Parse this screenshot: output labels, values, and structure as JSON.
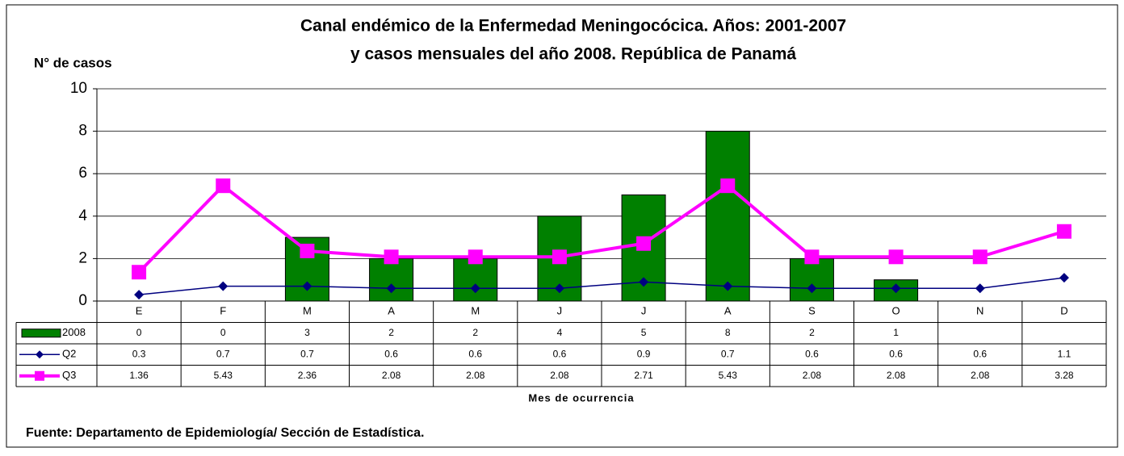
{
  "chart_data": {
    "type": "combo",
    "title": [
      "Canal endémico de la Enfermedad Meningocócica. Años: 2001-2007",
      "y casos mensuales del año 2008. República de Panamá"
    ],
    "ylabel": "N° de casos",
    "xlabel": "Mes de ocurrencia",
    "source": "Fuente: Departamento de Epidemiología/ Sección de Estadística.",
    "categories": [
      "E",
      "F",
      "M",
      "A",
      "M",
      "J",
      "J",
      "A",
      "S",
      "O",
      "N",
      "D"
    ],
    "series": [
      {
        "name": "2008",
        "type": "bar",
        "color": "#008000",
        "values": [
          0,
          0,
          3,
          2,
          2,
          4,
          5,
          8,
          2,
          1,
          null,
          null
        ]
      },
      {
        "name": "Q2",
        "type": "line",
        "marker": "diamond",
        "color": "#000080",
        "values": [
          0.3,
          0.7,
          0.7,
          0.6,
          0.6,
          0.6,
          0.9,
          0.7,
          0.6,
          0.6,
          0.6,
          1.1
        ]
      },
      {
        "name": "Q3",
        "type": "line",
        "marker": "square",
        "color": "#ff00ff",
        "values": [
          1.36,
          5.43,
          2.36,
          2.08,
          2.08,
          2.08,
          2.71,
          5.43,
          2.08,
          2.08,
          2.08,
          3.28
        ]
      }
    ],
    "ylim": [
      0,
      10
    ],
    "yticks": [
      0,
      2,
      4,
      6,
      8,
      10
    ],
    "grid": true
  }
}
